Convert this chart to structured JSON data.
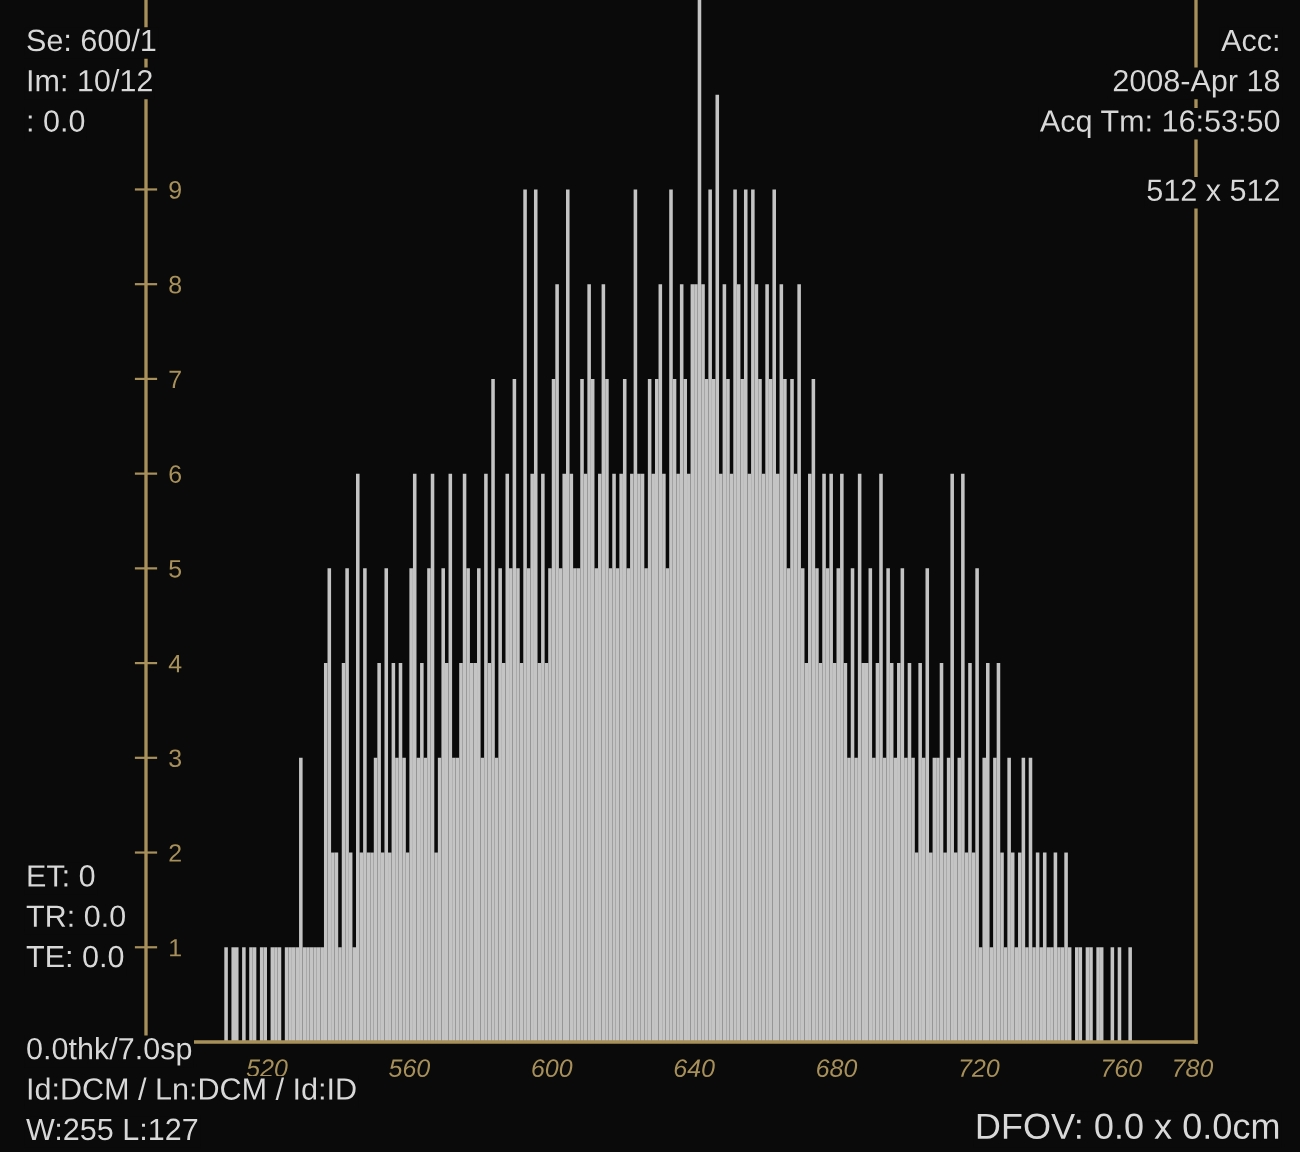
{
  "chart_data": {
    "type": "histogram",
    "bins": [
      508,
      509,
      510,
      511,
      512,
      513,
      514,
      515,
      516,
      517,
      518,
      519,
      520,
      521,
      522,
      523,
      524,
      525,
      526,
      527,
      528,
      529,
      530,
      531,
      532,
      533,
      534,
      535,
      536,
      537,
      538,
      539,
      540,
      541,
      542,
      543,
      544,
      545,
      546,
      547,
      548,
      549,
      550,
      551,
      552,
      553,
      554,
      555,
      556,
      557,
      558,
      559,
      560,
      561,
      562,
      563,
      564,
      565,
      566,
      567,
      568,
      569,
      570,
      571,
      572,
      573,
      574,
      575,
      576,
      577,
      578,
      579,
      580,
      581,
      582,
      583,
      584,
      585,
      586,
      587,
      588,
      589,
      590,
      591,
      592,
      593,
      594,
      595,
      596,
      597,
      598,
      599,
      600,
      601,
      602,
      603,
      604,
      605,
      606,
      607,
      608,
      609,
      610,
      611,
      612,
      613,
      614,
      615,
      616,
      617,
      618,
      619,
      620,
      621,
      622,
      623,
      624,
      625,
      626,
      627,
      628,
      629,
      630,
      631,
      632,
      633,
      634,
      635,
      636,
      637,
      638,
      639,
      640,
      641,
      642,
      643,
      644,
      645,
      646,
      647,
      648,
      649,
      650,
      651,
      652,
      653,
      654,
      655,
      656,
      657,
      658,
      659,
      660,
      661,
      662,
      663,
      664,
      665,
      666,
      667,
      668,
      669,
      670,
      671,
      672,
      673,
      674,
      675,
      676,
      677,
      678,
      679,
      680,
      681,
      682,
      683,
      684,
      685,
      686,
      687,
      688,
      689,
      690,
      691,
      692,
      693,
      694,
      695,
      696,
      697,
      698,
      699,
      700,
      701,
      702,
      703,
      704,
      705,
      706,
      707,
      708,
      709,
      710,
      711,
      712,
      713,
      714,
      715,
      716,
      717,
      718,
      719,
      720,
      721,
      722,
      723,
      724,
      725,
      726,
      727,
      728,
      729,
      730,
      731,
      732,
      733,
      734,
      735,
      736,
      737,
      738,
      739,
      740,
      741,
      742,
      743,
      744,
      745,
      746,
      747,
      748,
      749,
      750,
      751,
      752,
      753,
      754,
      755,
      756,
      757,
      758,
      759,
      760,
      761,
      762,
      763
    ],
    "values": [
      1,
      0,
      1,
      1,
      0,
      1,
      0,
      1,
      1,
      0,
      1,
      1,
      0,
      1,
      1,
      1,
      0,
      1,
      1,
      1,
      1,
      3,
      1,
      1,
      1,
      1,
      1,
      1,
      4,
      5,
      2,
      2,
      1,
      4,
      5,
      2,
      1,
      6,
      2,
      5,
      2,
      2,
      3,
      4,
      2,
      5,
      2,
      4,
      3,
      4,
      3,
      2,
      5,
      6,
      3,
      4,
      3,
      5,
      6,
      2,
      3,
      5,
      4,
      6,
      3,
      3,
      4,
      6,
      5,
      4,
      4,
      5,
      3,
      6,
      4,
      7,
      3,
      5,
      4,
      6,
      5,
      7,
      5,
      4,
      9,
      5,
      6,
      9,
      4,
      6,
      4,
      5,
      7,
      8,
      5,
      6,
      9,
      6,
      5,
      5,
      7,
      6,
      8,
      7,
      5,
      6,
      8,
      7,
      5,
      6,
      5,
      6,
      7,
      5,
      6,
      9,
      6,
      6,
      5,
      7,
      6,
      7,
      8,
      6,
      5,
      9,
      7,
      6,
      8,
      7,
      6,
      8,
      8,
      11,
      8,
      7,
      9,
      7,
      10,
      6,
      8,
      7,
      6,
      9,
      8,
      7,
      9,
      6,
      9,
      8,
      7,
      6,
      8,
      7,
      9,
      6,
      8,
      7,
      5,
      7,
      6,
      8,
      5,
      4,
      6,
      7,
      5,
      4,
      6,
      5,
      6,
      4,
      5,
      6,
      4,
      3,
      5,
      3,
      6,
      4,
      4,
      5,
      3,
      4,
      6,
      3,
      5,
      4,
      3,
      4,
      5,
      3,
      4,
      3,
      2,
      4,
      3,
      5,
      2,
      3,
      3,
      4,
      2,
      3,
      6,
      2,
      3,
      6,
      2,
      4,
      2,
      5,
      1,
      3,
      4,
      1,
      3,
      4,
      2,
      1,
      3,
      2,
      1,
      2,
      3,
      1,
      3,
      1,
      2,
      1,
      2,
      1,
      1,
      2,
      1,
      1,
      2,
      1,
      0,
      1,
      1,
      0,
      1,
      1,
      0,
      1,
      1,
      0,
      0,
      1,
      0,
      1,
      0,
      0,
      1
    ],
    "color": "#c4c4c4",
    "xlim": [
      486,
      781
    ],
    "xticks": [
      520,
      560,
      600,
      640,
      680,
      720,
      760,
      780
    ],
    "ylim": [
      0,
      11
    ],
    "yticks": [
      1,
      2,
      3,
      4,
      5,
      6,
      7,
      8,
      9
    ],
    "grid": false,
    "annotations": [
      "Se: 600/1",
      "Im: 10/12",
      ": 0.0",
      "Acc:",
      "2008-Apr 18",
      "Acq Tm: 16:53:50",
      "512 x 512",
      "ET: 0",
      "TR: 0.0",
      "TE: 0.0",
      "0.0thk/7.0sp",
      "Id:DCM / Ln:DCM / Id:ID",
      "W:255 L:127",
      "DFOV: 0.0 x 0.0cm"
    ]
  }
}
